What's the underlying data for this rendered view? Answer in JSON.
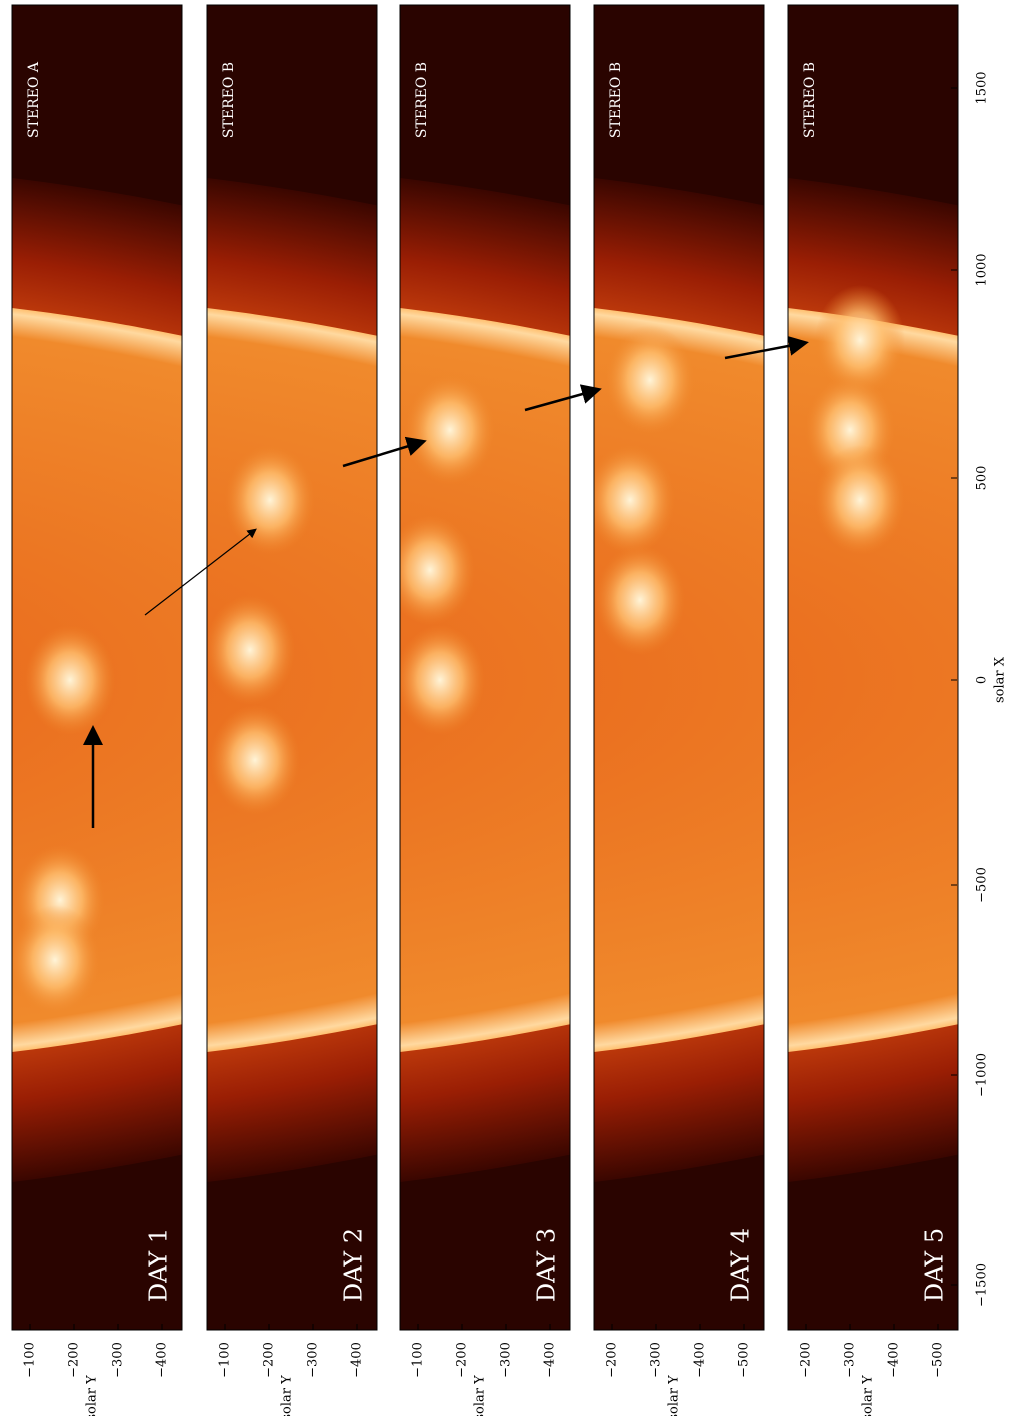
{
  "panels": [
    {
      "day": "DAY 1",
      "instrument": "STEREO A",
      "y_ticks": [
        "−100",
        "−200",
        "−300",
        "−400"
      ]
    },
    {
      "day": "DAY 2",
      "instrument": "STEREO B",
      "y_ticks": [
        "−100",
        "−200",
        "−300",
        "−400"
      ]
    },
    {
      "day": "DAY 3",
      "instrument": "STEREO B",
      "y_ticks": [
        "−100",
        "−200",
        "−300",
        "−400"
      ]
    },
    {
      "day": "DAY 4",
      "instrument": "STEREO B",
      "y_ticks": [
        "−200",
        "−300",
        "−400",
        "−500"
      ]
    },
    {
      "day": "DAY 5",
      "instrument": "STEREO B",
      "y_ticks": [
        "−200",
        "−300",
        "−400",
        "−500"
      ]
    }
  ],
  "y_axis_label": "solar Y",
  "x_axis": {
    "label": "solar X",
    "ticks": [
      "1500",
      "1000",
      "500",
      "0",
      "−500",
      "−1000",
      "−1500"
    ]
  }
}
